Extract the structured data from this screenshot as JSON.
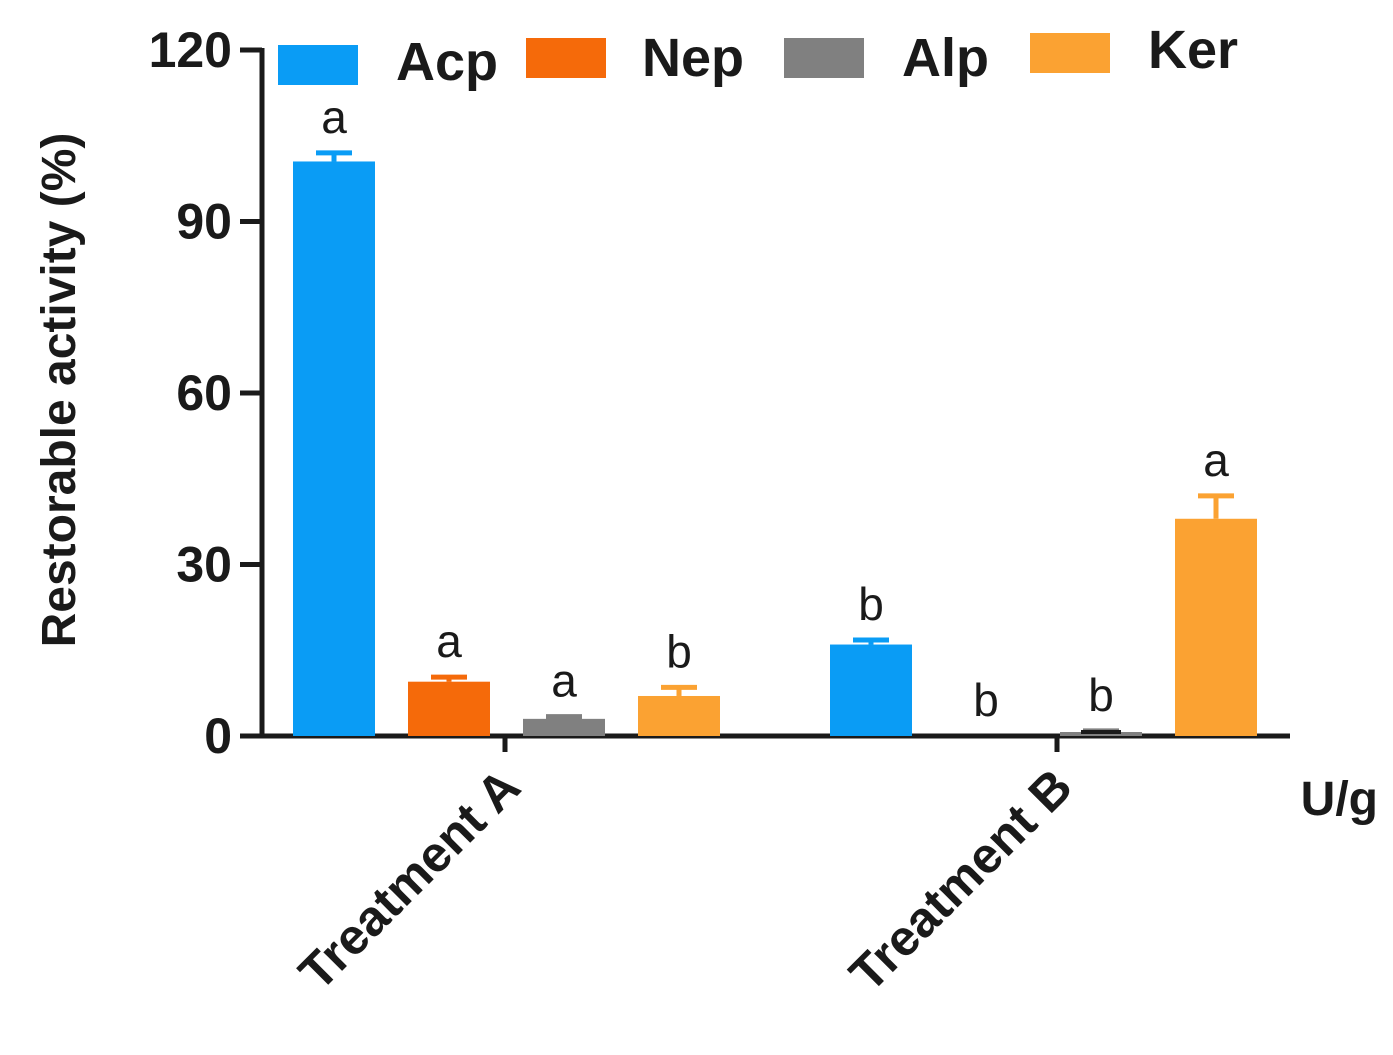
{
  "chart_data": {
    "type": "bar",
    "title": "",
    "ylabel": "Restorable activity (%)",
    "xlabel": "U/g",
    "ylim": [
      0,
      120
    ],
    "yticks": [
      0,
      30,
      60,
      90,
      120
    ],
    "categories": [
      "Treatment A",
      "Treatment B"
    ],
    "legend_position": "top",
    "series": [
      {
        "name": "Acp",
        "color": "#0a9cf5",
        "values": [
          100.5,
          16
        ],
        "errors": [
          1.5,
          0.8
        ],
        "labels": [
          "a",
          "b"
        ]
      },
      {
        "name": "Nep",
        "color": "#f56a0a",
        "values": [
          9.5,
          0
        ],
        "errors": [
          0.8,
          0
        ],
        "labels": [
          "a",
          "b"
        ]
      },
      {
        "name": "Alp",
        "color": "#808080",
        "values": [
          3,
          0.7
        ],
        "errors": [
          0.4,
          0.2
        ],
        "labels": [
          "a",
          "b"
        ]
      },
      {
        "name": "Ker",
        "color": "#fba232",
        "values": [
          7,
          38
        ],
        "errors": [
          1.5,
          4
        ],
        "labels": [
          "b",
          "a"
        ]
      }
    ]
  }
}
